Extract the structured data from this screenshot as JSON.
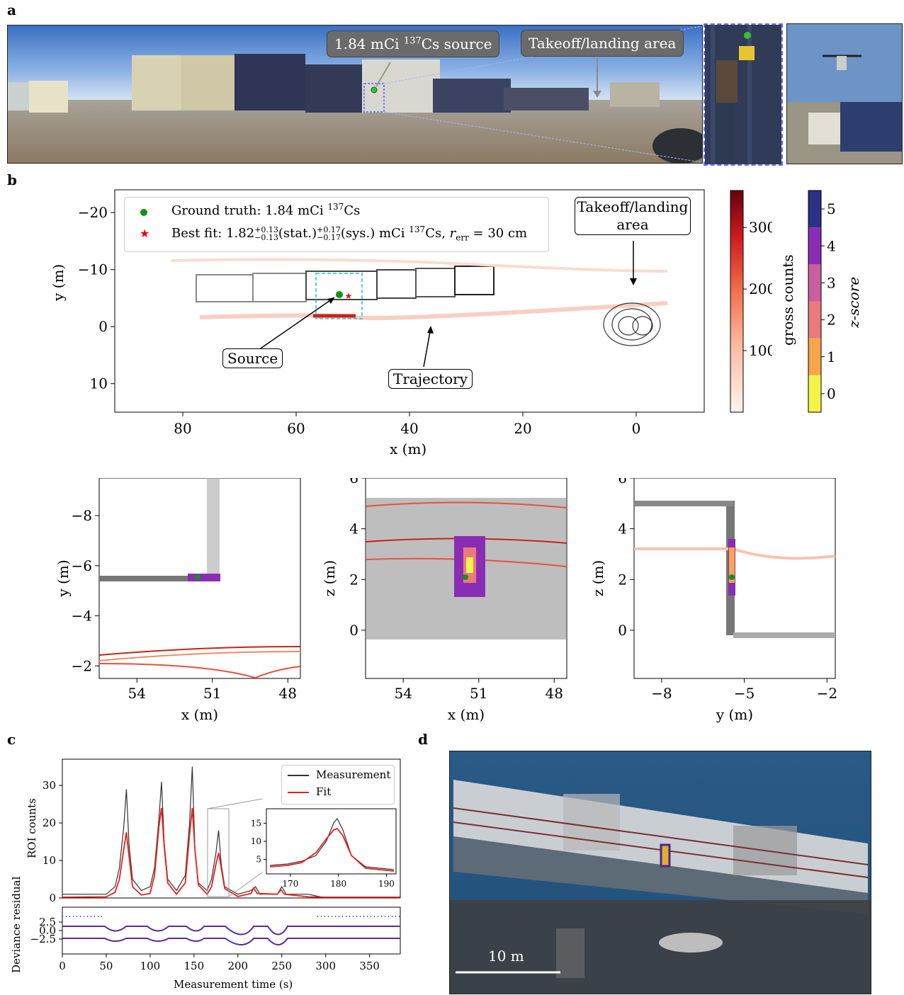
{
  "panels": {
    "a": "a",
    "b": "b",
    "c": "c",
    "d": "d"
  },
  "panel_a": {
    "source_callout": "1.84 mCi ",
    "source_callout_sup": "137",
    "source_callout_tail": "Cs source",
    "takeoff_callout": "Takeoff/landing area"
  },
  "panel_b_map": {
    "legend_gt": "Ground truth: 1.84 mCi ",
    "legend_gt_sup": "137",
    "legend_gt_tail": "Cs",
    "legend_fit": "Best fit: 1.82",
    "legend_fit_rest": "(stat.)",
    "legend_fit_sys": "(sys.) mCi ",
    "legend_fit_sup": "137",
    "legend_fit_tail": "Cs, ",
    "legend_fit_r": "r",
    "legend_fit_rsub": "err",
    "legend_fit_req": " = 30 cm",
    "stat_sup": "+0.13",
    "stat_sub": "−0.13",
    "sys_sup": "+0.17",
    "sys_sub": "−0.17",
    "takeoff_label_1": "Takeoff/landing",
    "takeoff_label_2": "area",
    "source_label": "Source",
    "trajectory_label": "Trajectory",
    "xlabel": "x (m)",
    "ylabel": "y (m)",
    "xticks": [
      "80",
      "60",
      "40",
      "20",
      "0"
    ],
    "yticks": [
      "−20",
      "−10",
      "0",
      "10"
    ],
    "colorbar_counts_label": "gross counts",
    "colorbar_counts_ticks": [
      "300",
      "200",
      "100"
    ],
    "colorbar_z_label": "z-score",
    "colorbar_z_ticks": [
      "5",
      "4",
      "3",
      "2",
      "1",
      "0"
    ]
  },
  "zoom_panels": [
    {
      "xlabel": "x (m)",
      "ylabel": "y (m)",
      "xticks": [
        "54",
        "51",
        "48"
      ],
      "yticks": [
        "−8",
        "−6",
        "−4",
        "−2"
      ]
    },
    {
      "xlabel": "x (m)",
      "ylabel": "z (m)",
      "xticks": [
        "54",
        "51",
        "48"
      ],
      "yticks": [
        "6",
        "4",
        "2",
        "0"
      ]
    },
    {
      "xlabel": "y (m)",
      "ylabel": "z (m)",
      "xticks": [
        "−8",
        "−5",
        "−2"
      ],
      "yticks": [
        "6",
        "4",
        "2",
        "0"
      ]
    }
  ],
  "panel_c": {
    "legend_measurement": "Measurement",
    "legend_fit": "Fit",
    "ylabel_top": "ROI counts",
    "ylabel_bottom": "Deviance residual",
    "xlabel": "Measurement time (s)",
    "top_yticks": [
      "30",
      "20",
      "10",
      "0"
    ],
    "bottom_yticks": [
      "2.5",
      "0.0",
      "−2.5"
    ],
    "xticks": [
      "0",
      "50",
      "100",
      "150",
      "200",
      "250",
      "300",
      "350"
    ],
    "inset_yticks": [
      "15",
      "10",
      "5"
    ],
    "inset_xticks": [
      "170",
      "180",
      "190"
    ]
  },
  "panel_d": {
    "scale_label": "10 m"
  },
  "chart_data": [
    {
      "type": "scatter",
      "title": "",
      "xlabel": "x (m)",
      "ylabel": "y (m)",
      "xlim": [
        92,
        -12
      ],
      "ylim": [
        15,
        -24
      ],
      "series": [
        {
          "name": "Ground truth: 1.84 mCi 137Cs",
          "x": [
            51
          ],
          "y": [
            -5.5
          ]
        },
        {
          "name": "Best fit: 1.82 mCi 137Cs",
          "x": [
            51
          ],
          "y": [
            -5.5
          ]
        }
      ],
      "colorbar_counts_range": [
        0,
        360
      ],
      "colorbar_zscore_range": [
        -0.5,
        5.5
      ]
    },
    {
      "type": "line",
      "xlabel": "Measurement time (s)",
      "ylabel": "ROI counts",
      "xlim": [
        0,
        385
      ],
      "ylim": [
        0,
        37
      ],
      "series": [
        {
          "name": "Measurement",
          "x": [
            0,
            50,
            60,
            65,
            70,
            73,
            76,
            80,
            90,
            100,
            105,
            110,
            113,
            116,
            120,
            130,
            140,
            145,
            148,
            151,
            155,
            165,
            170,
            175,
            178,
            181,
            185,
            200,
            215,
            220,
            225,
            245,
            250,
            255,
            280,
            300,
            385
          ],
          "y": [
            1,
            1,
            3,
            8,
            19,
            29,
            14,
            5,
            2,
            3,
            8,
            21,
            31,
            15,
            5,
            2,
            6,
            20,
            35,
            13,
            4,
            2,
            5,
            12,
            18,
            9,
            3,
            1,
            2,
            3,
            1,
            1,
            3,
            1,
            1,
            0,
            0
          ]
        },
        {
          "name": "Fit",
          "x": [
            0,
            50,
            60,
            65,
            70,
            73,
            76,
            80,
            90,
            100,
            105,
            110,
            113,
            116,
            120,
            130,
            140,
            145,
            148,
            151,
            155,
            165,
            170,
            175,
            178,
            181,
            185,
            200,
            215,
            218,
            222,
            245,
            249,
            253,
            280,
            300,
            385
          ],
          "y": [
            0.2,
            0.3,
            1.5,
            5,
            13,
            17.5,
            11,
            3,
            0.8,
            1.2,
            6,
            19,
            24,
            14,
            4,
            1,
            4,
            17,
            24,
            13,
            3.5,
            1,
            3,
            9,
            12,
            8,
            2.5,
            0.4,
            1.2,
            2.7,
            1.2,
            1,
            2.2,
            1,
            0.3,
            0.2,
            0.2
          ]
        }
      ]
    }
  ]
}
